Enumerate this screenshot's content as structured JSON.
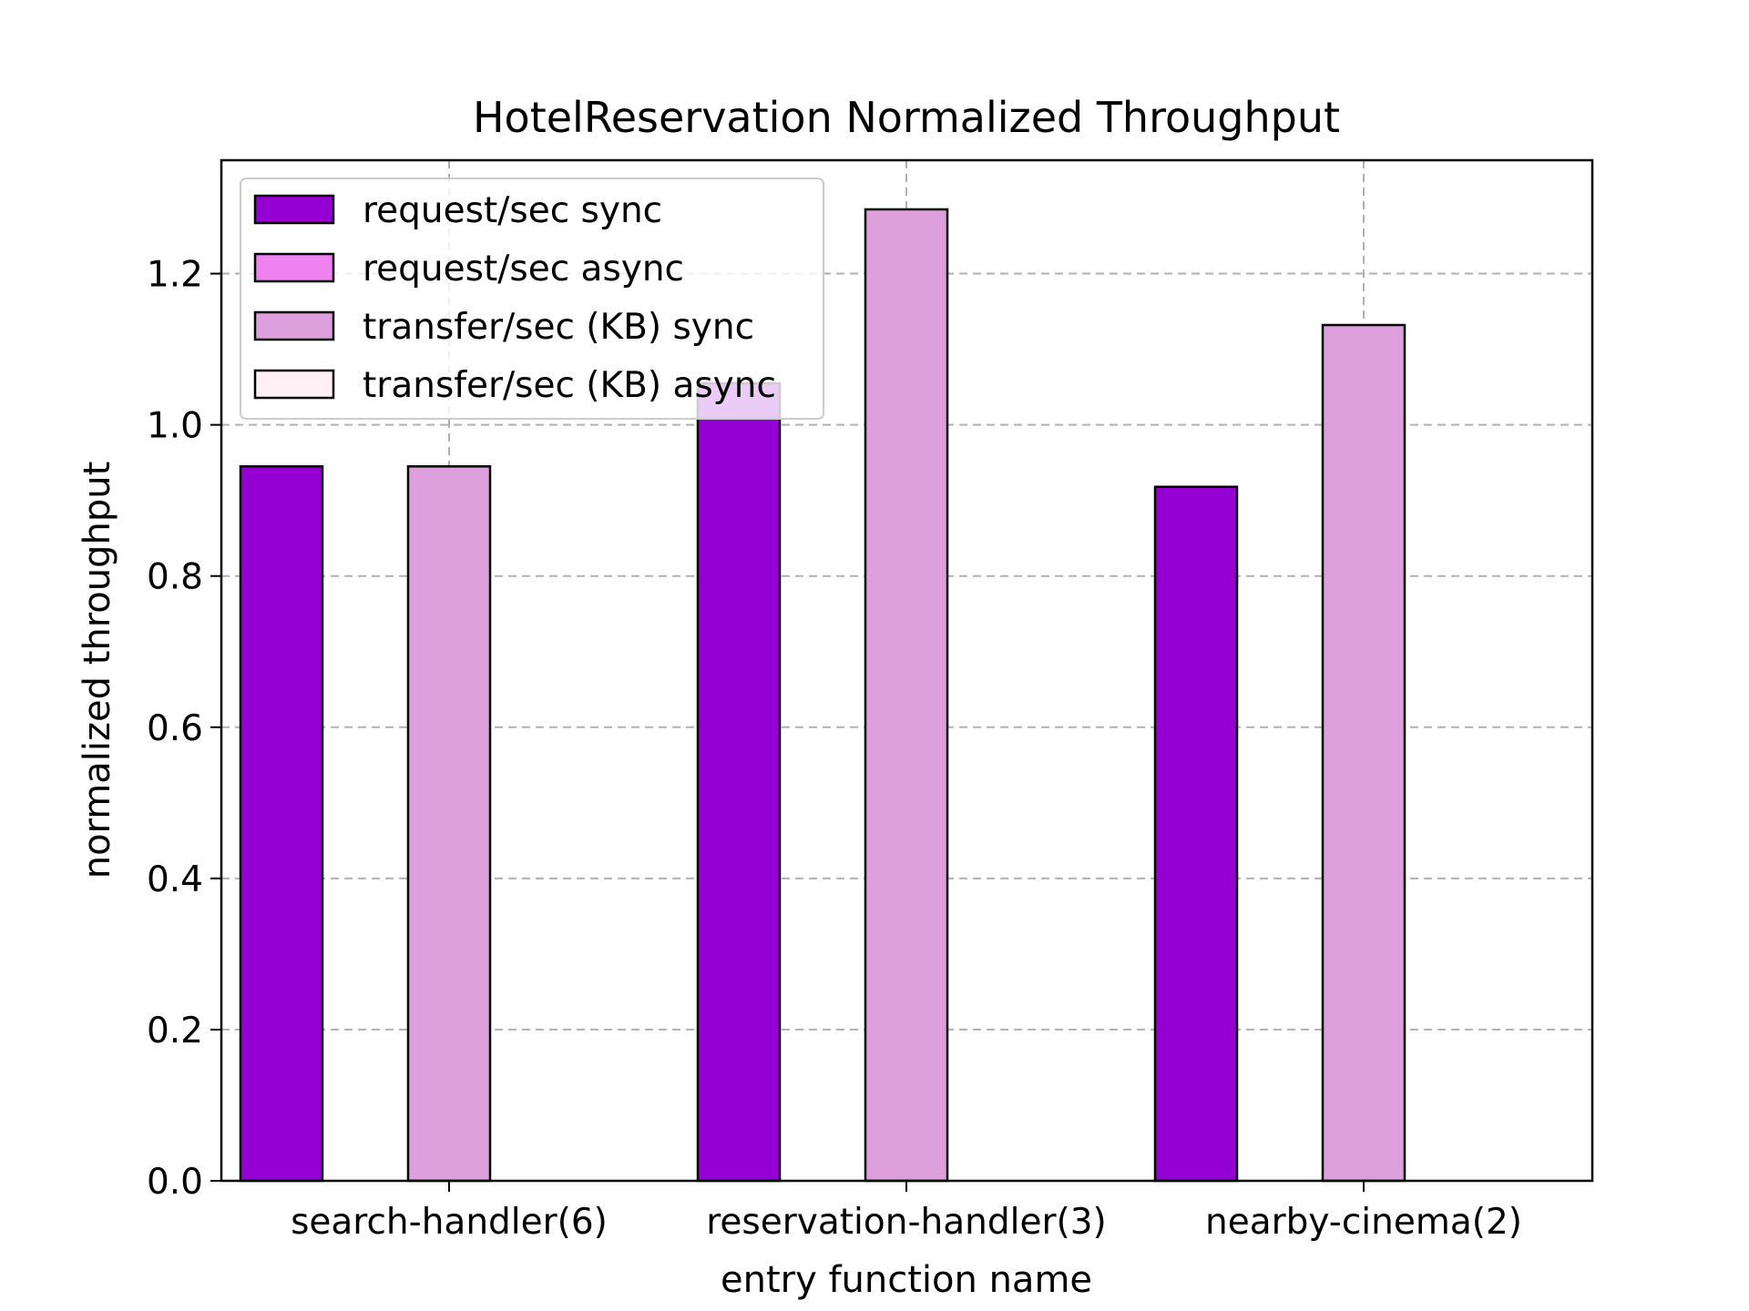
{
  "chart_data": {
    "type": "bar",
    "title": "HotelReservation Normalized Throughput",
    "xlabel": "entry function name",
    "ylabel": "normalized throughput",
    "categories": [
      "search-handler(6)",
      "reservation-handler(3)",
      "nearby-cinema(2)"
    ],
    "ylim": [
      0,
      1.35
    ],
    "yticks": [
      0.0,
      0.2,
      0.4,
      0.6,
      0.8,
      1.0,
      1.2
    ],
    "ytick_labels": [
      "0.0",
      "0.2",
      "0.4",
      "0.6",
      "0.8",
      "1.0",
      "1.2"
    ],
    "grid": true,
    "legend_position": "upper-left",
    "series": [
      {
        "name": "request/sec sync",
        "color": "#9400D3",
        "values": [
          0.945,
          1.055,
          0.918
        ]
      },
      {
        "name": "request/sec async",
        "color": "#EE82EE",
        "values": [
          0.0,
          0.0,
          0.0
        ]
      },
      {
        "name": "transfer/sec (KB) sync",
        "color": "#DDA0DD",
        "values": [
          0.945,
          1.285,
          1.132
        ]
      },
      {
        "name": "transfer/sec (KB) async",
        "color": "#FFF0F5",
        "values": [
          0.0,
          0.0,
          0.0
        ]
      }
    ]
  }
}
